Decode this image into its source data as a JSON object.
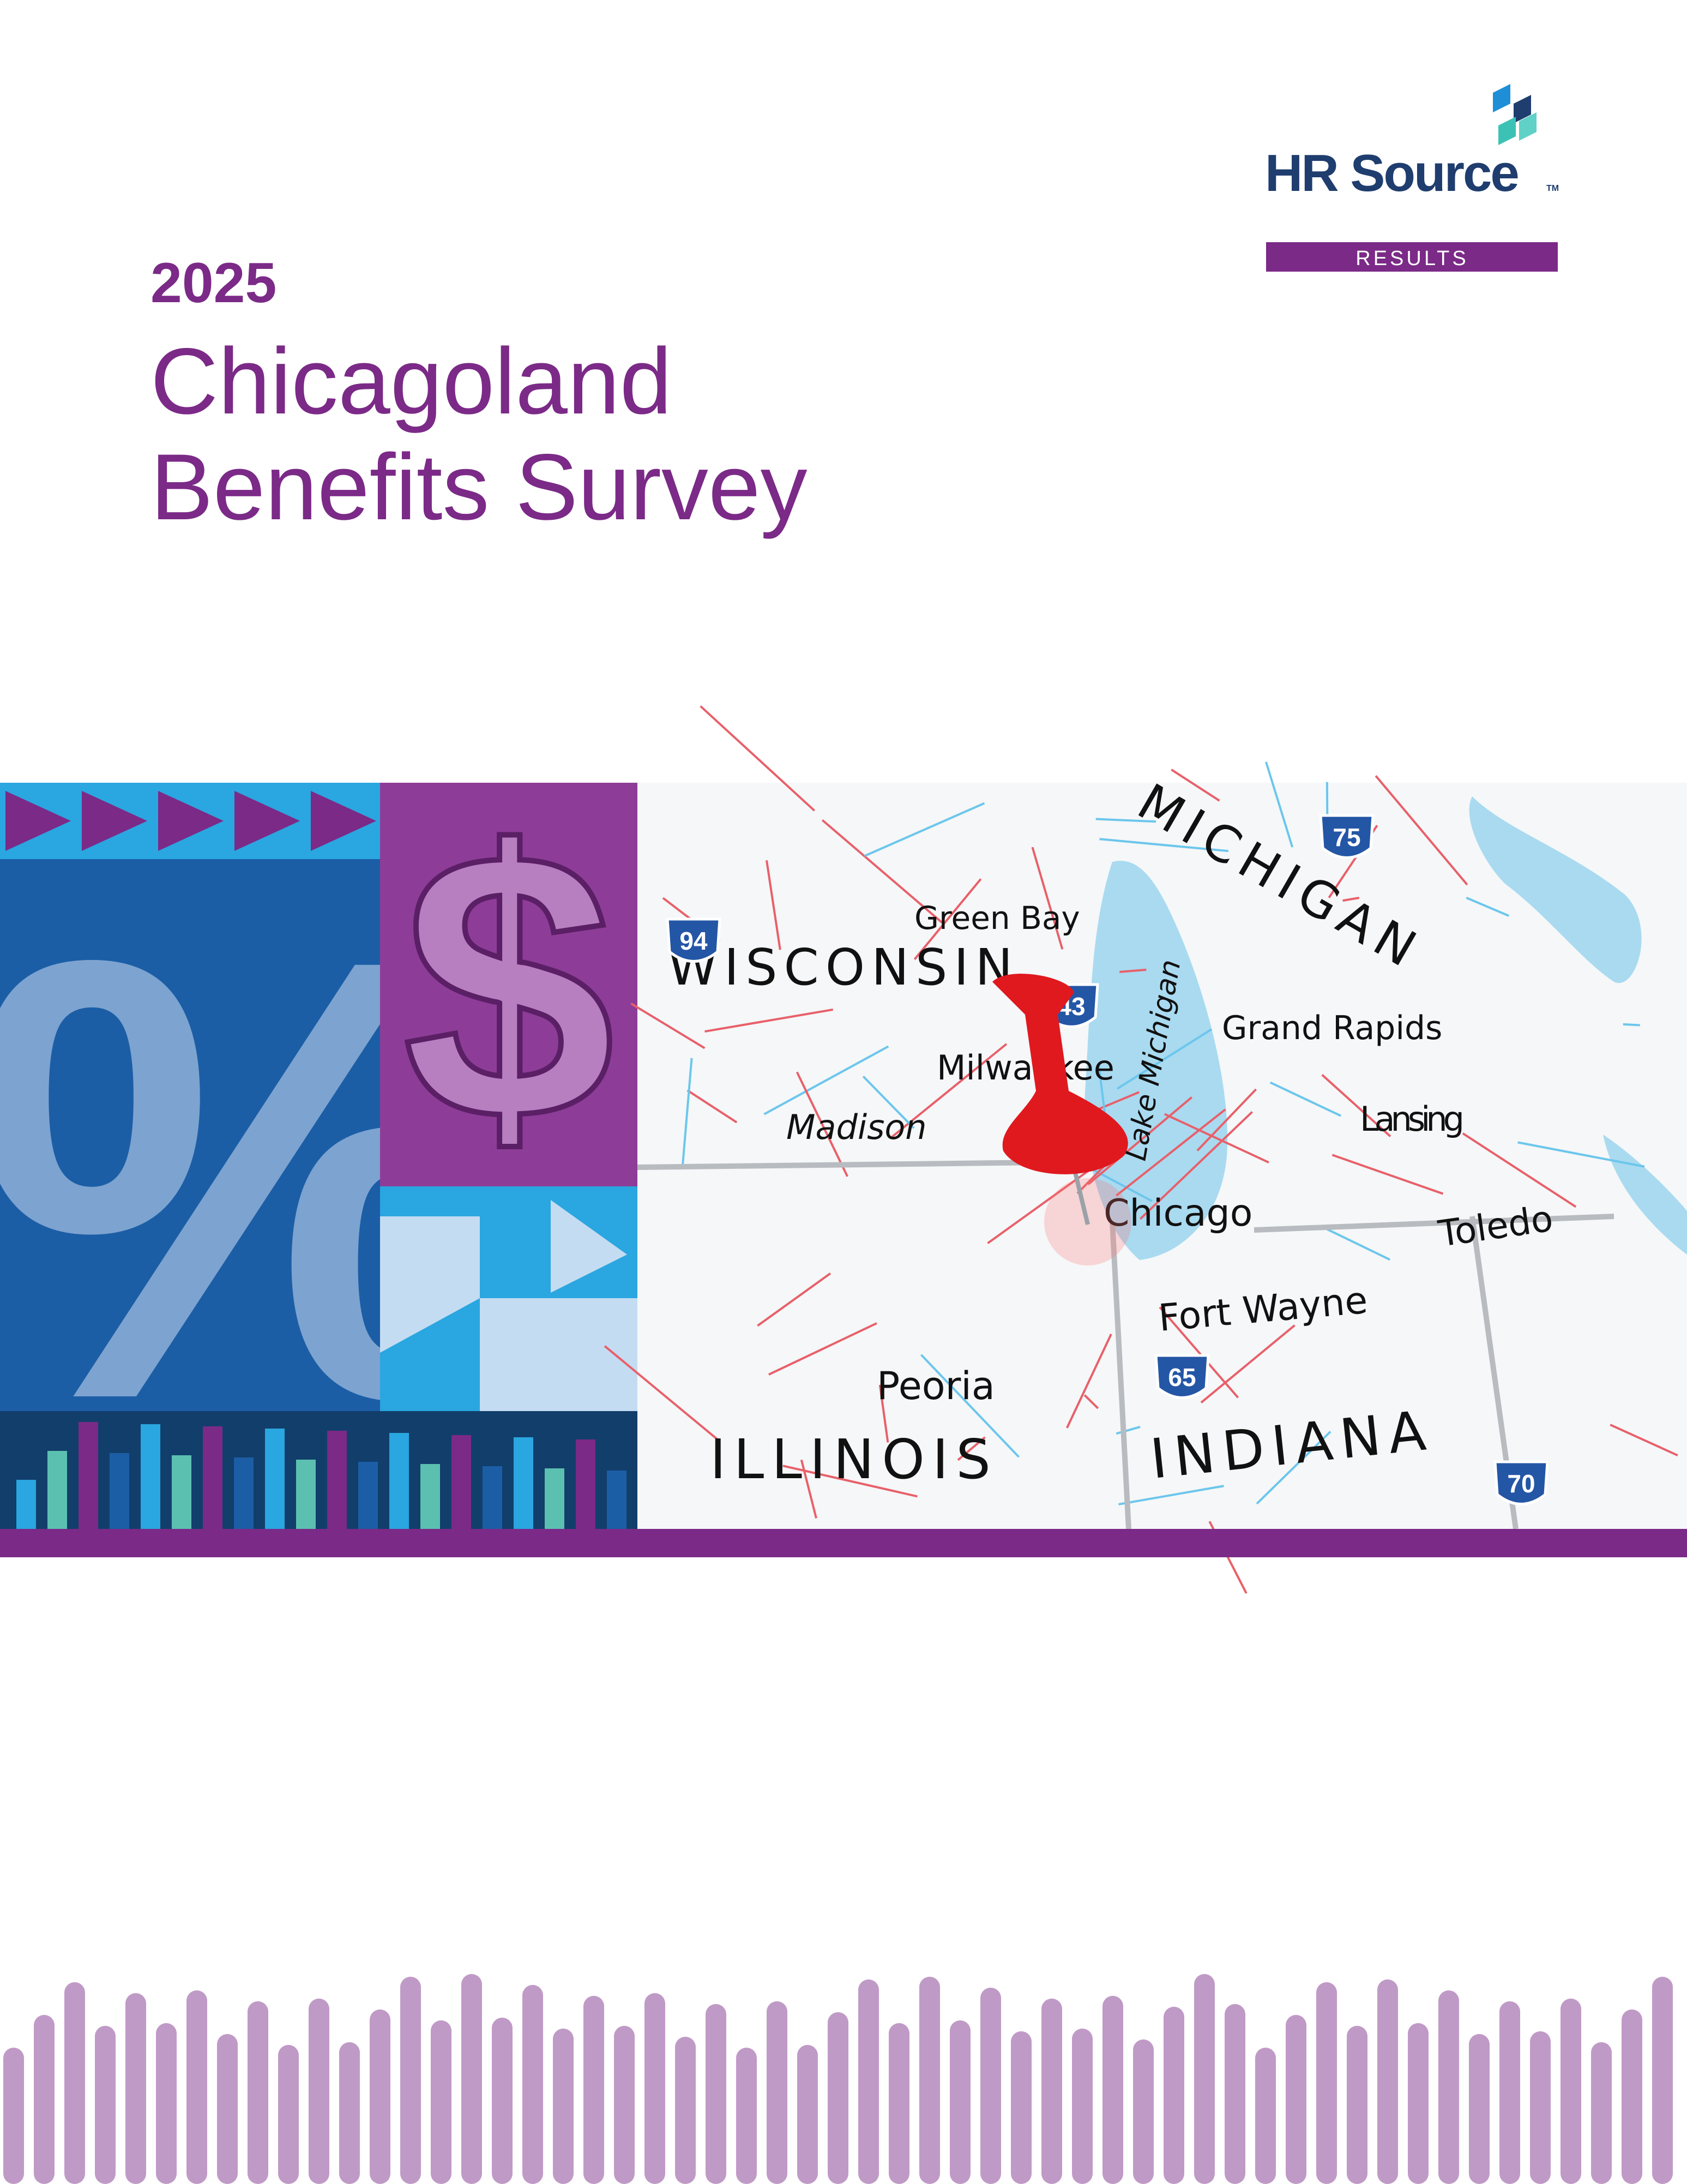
{
  "logo": {
    "name": "HR Source",
    "trademark": "TM",
    "tag": "RESULTS"
  },
  "cover": {
    "year": "2025",
    "title_line1": "Chicagoland",
    "title_line2": "Benefits Survey"
  },
  "map": {
    "labels": [
      "Green Bay",
      "WISCONSIN",
      "Milwaukee",
      "Madison",
      "Chicago",
      "Grand Rapids",
      "Lansing",
      "MICHIGAN",
      "Toledo",
      "Fort Wayne",
      "Peoria",
      "ILLINOIS",
      "INDIANA",
      "Lake Michigan"
    ],
    "shields": [
      "94",
      "43",
      "75",
      "65",
      "70"
    ]
  }
}
